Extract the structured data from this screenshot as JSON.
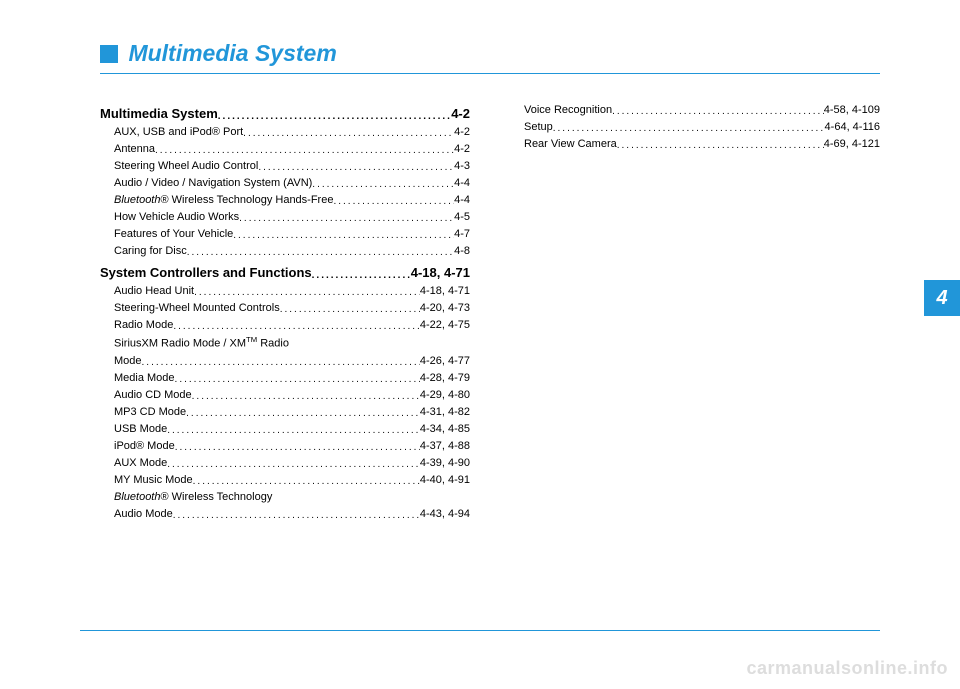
{
  "chapter": {
    "title": "Multimedia System",
    "tab_number": "4",
    "colors": {
      "accent": "#2196d9",
      "text": "#000000",
      "watermark": "#dddddd"
    }
  },
  "toc": {
    "left": [
      {
        "type": "section",
        "label": "Multimedia System",
        "page": "4-2"
      },
      {
        "type": "sub",
        "label": "AUX, USB and iPod® Port ",
        "page": "4-2"
      },
      {
        "type": "sub",
        "label": "Antenna ",
        "page": "4-2"
      },
      {
        "type": "sub",
        "label": "Steering Wheel Audio Control",
        "page": "4-3"
      },
      {
        "type": "sub",
        "label": "Audio / Video / Navigation System (AVN)",
        "page": "4-4"
      },
      {
        "type": "sub",
        "label_html": "<span class=\"italic\">Bluetooth</span>® Wireless Technology Hands-Free",
        "page": "4-4"
      },
      {
        "type": "sub",
        "label": "How Vehicle Audio Works ",
        "page": "4-5"
      },
      {
        "type": "sub",
        "label": "Features of Your Vehicle",
        "page": "4-7"
      },
      {
        "type": "sub",
        "label": "Caring for Disc ",
        "page": "4-8"
      },
      {
        "type": "section",
        "label": "System Controllers and Functions ",
        "page": "4-18, 4-71"
      },
      {
        "type": "sub",
        "label": "Audio Head Unit ",
        "page": "4-18, 4-71"
      },
      {
        "type": "sub",
        "label": "Steering-Wheel Mounted Controls ",
        "page": "4-20, 4-73"
      },
      {
        "type": "sub",
        "label": "Radio Mode ",
        "page": "4-22, 4-75"
      },
      {
        "type": "sub",
        "label_html": "SiriusXM Radio Mode / XM<sup>TM</sup> Radio",
        "nobreak": true
      },
      {
        "type": "sub",
        "label": "Mode ",
        "page": "4-26, 4-77",
        "noindent": false
      },
      {
        "type": "sub",
        "label": "Media Mode ",
        "page": "4-28, 4-79"
      },
      {
        "type": "sub",
        "label": "Audio CD Mode",
        "page": "4-29, 4-80"
      },
      {
        "type": "sub",
        "label": "MP3 CD Mode",
        "page": "4-31, 4-82"
      },
      {
        "type": "sub",
        "label": "USB Mode",
        "page": "4-34, 4-85"
      },
      {
        "type": "sub",
        "label": "iPod® Mode ",
        "page": "4-37, 4-88"
      },
      {
        "type": "sub",
        "label": "AUX Mode",
        "page": "4-39, 4-90"
      },
      {
        "type": "sub",
        "label": "MY Music Mode ",
        "page": "4-40, 4-91"
      },
      {
        "type": "sub",
        "label_html": "<span class=\"italic\">Bluetooth</span>® Wireless Technology",
        "nobreak": true
      },
      {
        "type": "sub",
        "label": "Audio Mode ",
        "page": "4-43, 4-94"
      }
    ],
    "right": [
      {
        "type": "sub",
        "label": "Voice Recognition ",
        "page": "4-58, 4-109"
      },
      {
        "type": "sub",
        "label": "Setup ",
        "page": "4-64, 4-116"
      },
      {
        "type": "sub",
        "label": "Rear View Camera ",
        "page": "4-69, 4-121"
      }
    ]
  },
  "watermark": "carmanualsonline.info"
}
